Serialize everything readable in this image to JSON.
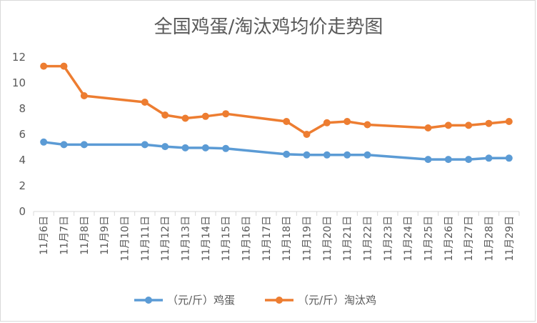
{
  "chart_data": {
    "type": "line",
    "title": "全国鸡蛋/淘汰鸡均价走势图",
    "xlabel": "",
    "ylabel": "",
    "ylim": [
      0,
      12
    ],
    "yticks": [
      0,
      2,
      4,
      6,
      8,
      10,
      12
    ],
    "grid": false,
    "legend": "bottom",
    "categories": [
      "11月6日",
      "11月7日",
      "11月8日",
      "11月9日",
      "11月10日",
      "11月11日",
      "11月12日",
      "11月13日",
      "11月14日",
      "11月15日",
      "11月16日",
      "11月17日",
      "11月18日",
      "11月19日",
      "11月20日",
      "11月21日",
      "11月22日",
      "11月23日",
      "11月24日",
      "11月25日",
      "11月26日",
      "11月27日",
      "11月28日",
      "11月29日"
    ],
    "series": [
      {
        "name": "（元/斤）鸡蛋",
        "color": "#5b9bd5",
        "values": [
          5.4,
          5.2,
          5.2,
          null,
          null,
          5.2,
          5.05,
          4.95,
          4.95,
          4.9,
          null,
          null,
          4.45,
          4.4,
          4.4,
          4.4,
          4.4,
          null,
          null,
          4.05,
          4.05,
          4.05,
          4.15,
          4.15
        ]
      },
      {
        "name": "（元/斤）淘汰鸡",
        "color": "#ed7d31",
        "values": [
          11.3,
          11.3,
          9.0,
          null,
          null,
          8.5,
          7.5,
          7.25,
          7.4,
          7.6,
          null,
          null,
          7.0,
          6.0,
          6.9,
          7.0,
          6.75,
          null,
          null,
          6.5,
          6.7,
          6.7,
          6.85,
          7.0
        ]
      }
    ]
  }
}
